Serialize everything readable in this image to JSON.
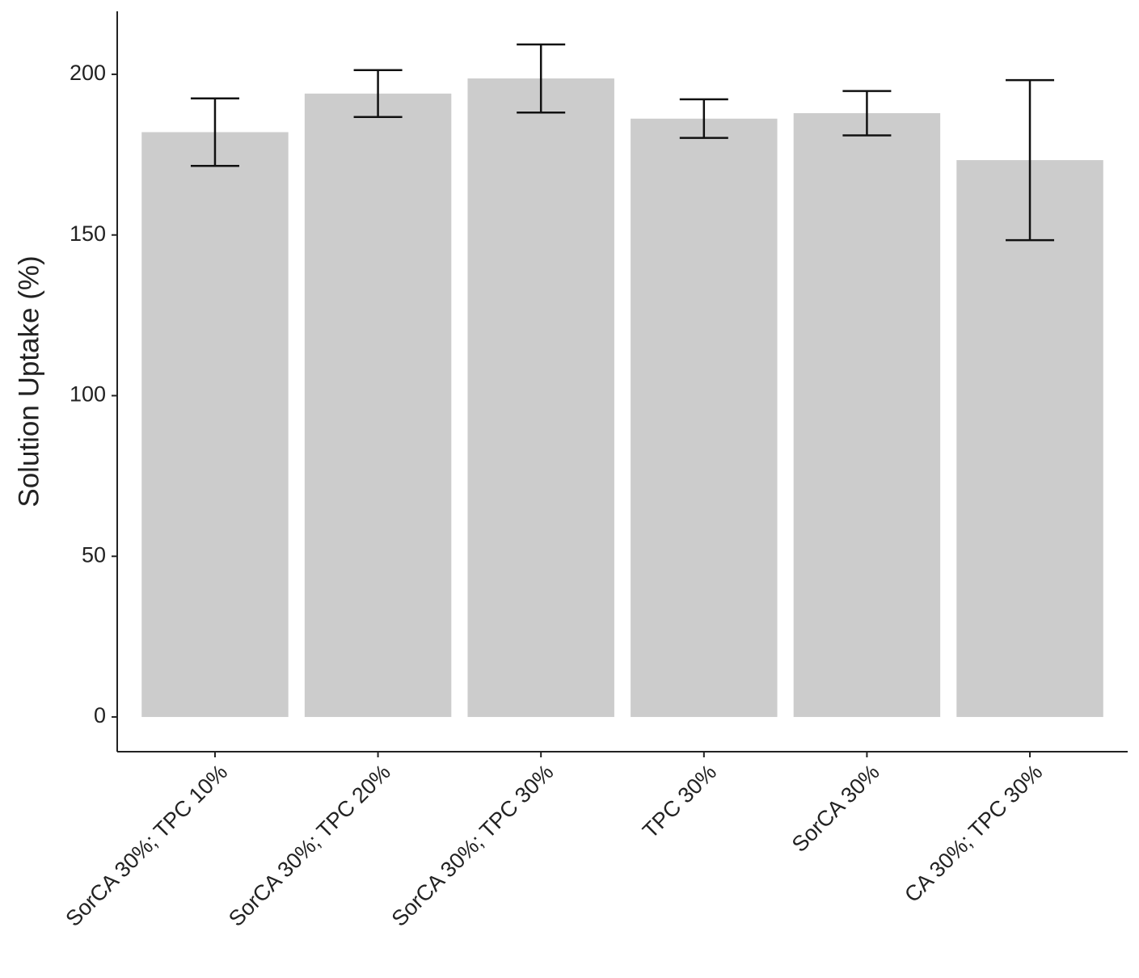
{
  "chart_data": {
    "type": "bar",
    "y_label": "Solution Uptake (%)",
    "categories": [
      "SorCA 30%; TPC 10%",
      "SorCA 30%; TPC 20%",
      "SorCA 30%; TPC 30%",
      "TPC 30%",
      "SorCA 30%",
      "CA 30%; TPC 30%"
    ],
    "values": [
      182,
      194,
      198.7,
      186.2,
      187.9,
      173.3
    ],
    "errors": [
      10.5,
      7.3,
      10.6,
      6,
      6.9,
      24.9
    ],
    "color": "#cccccc",
    "ylim": [
      -10.8,
      219.6
    ],
    "yticks": [
      0,
      50,
      100,
      150,
      200
    ],
    "grid": false
  }
}
